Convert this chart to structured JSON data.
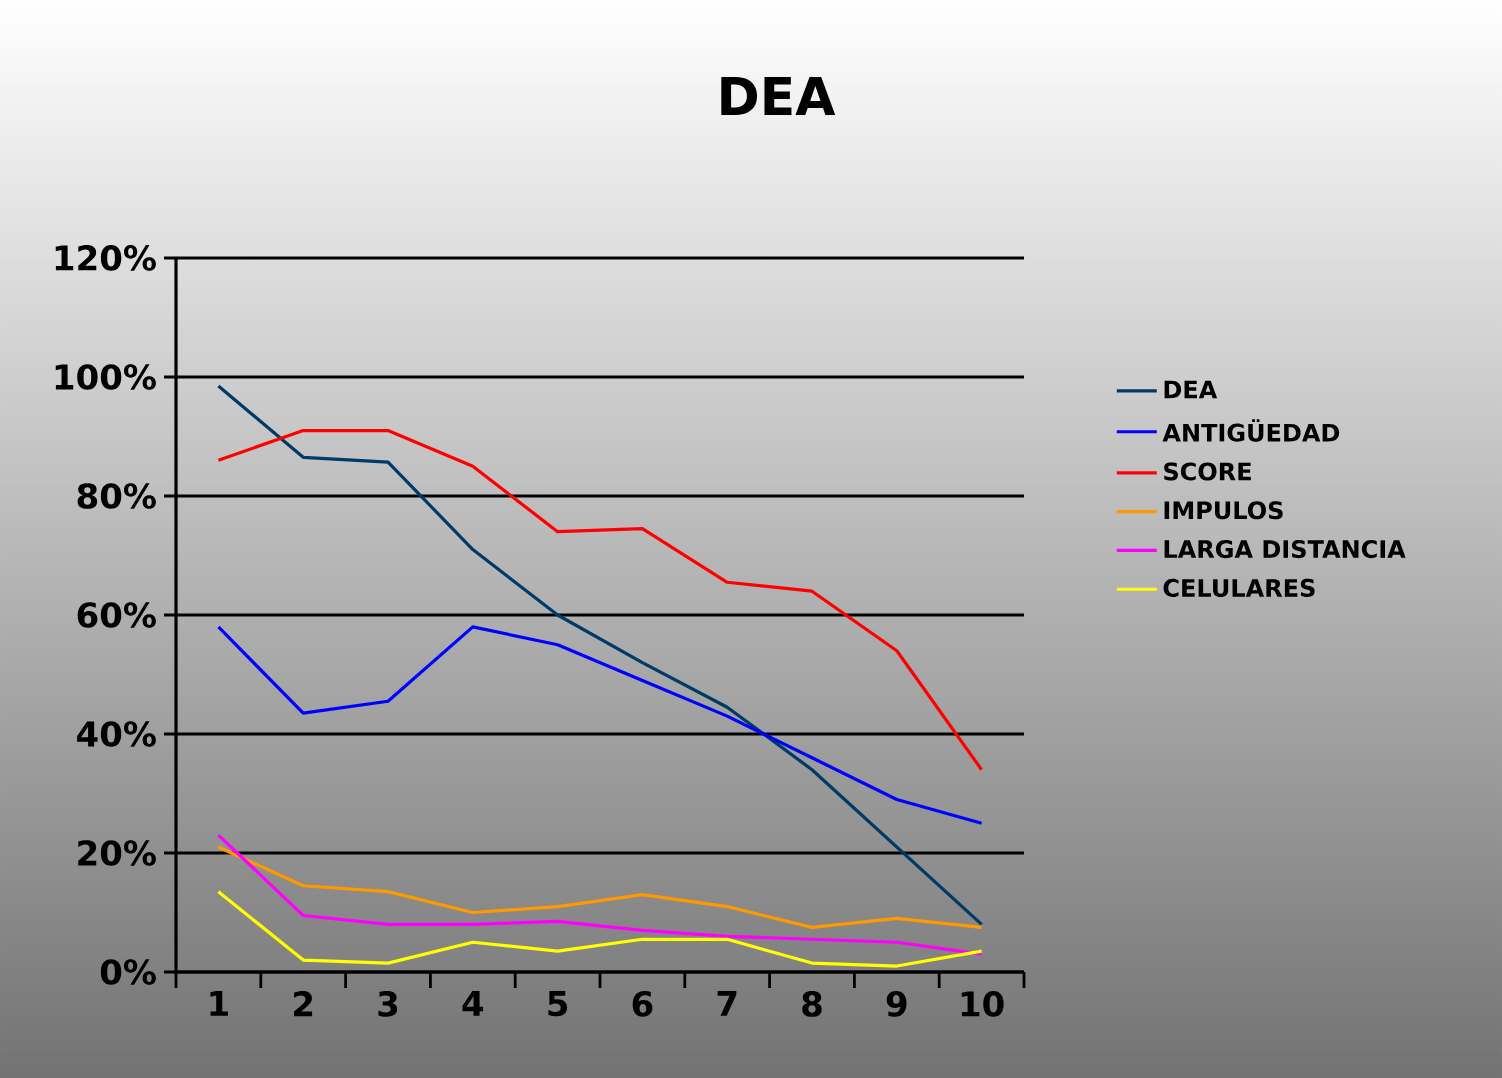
{
  "chart_data": {
    "type": "line",
    "title": "DEA",
    "categories": [
      "1",
      "2",
      "3",
      "4",
      "5",
      "6",
      "7",
      "8",
      "9",
      "10"
    ],
    "series": [
      {
        "name": "DEA",
        "color": "#003a66",
        "values": [
          98.5,
          86.5,
          85.7,
          71,
          60,
          52,
          44.5,
          34,
          21,
          8
        ]
      },
      {
        "name": "ANTIGÜEDAD",
        "color": "#0000ff",
        "values": [
          58,
          43.5,
          45.5,
          58,
          55,
          49,
          43,
          36,
          29,
          25
        ]
      },
      {
        "name": "SCORE",
        "color": "#ff0000",
        "values": [
          86,
          91,
          91,
          85,
          74,
          74.5,
          65.5,
          64,
          54,
          34
        ]
      },
      {
        "name": "IMPULOS",
        "color": "#ff9900",
        "values": [
          21,
          14.5,
          13.5,
          10,
          11,
          13,
          11,
          7.5,
          9,
          7.5
        ]
      },
      {
        "name": "LARGA DISTANCIA",
        "color": "#ff00ff",
        "values": [
          23,
          9.5,
          8,
          8,
          8.5,
          7,
          6,
          5.5,
          5,
          3
        ]
      },
      {
        "name": "CELULARES",
        "color": "#ffff00",
        "values": [
          13.5,
          2,
          1.5,
          5,
          3.5,
          5.5,
          5.5,
          1.5,
          1,
          3.5
        ]
      }
    ],
    "ylim": [
      0,
      120
    ],
    "yticks": [
      {
        "value": 0,
        "label": "0%"
      },
      {
        "value": 20,
        "label": "20%"
      },
      {
        "value": 40,
        "label": "40%"
      },
      {
        "value": 60,
        "label": "60%"
      },
      {
        "value": 80,
        "label": "80%"
      },
      {
        "value": 100,
        "label": "100%"
      },
      {
        "value": 120,
        "label": "120%"
      }
    ],
    "grid": "y",
    "legend": "right"
  }
}
